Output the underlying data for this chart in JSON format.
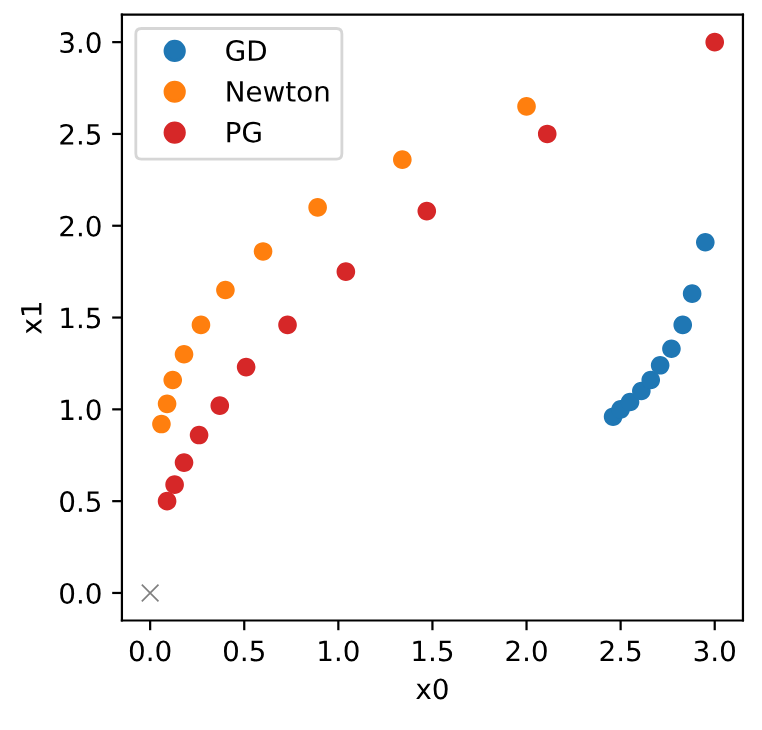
{
  "chart_data": {
    "type": "scatter",
    "xlabel": "x0",
    "ylabel": "x1",
    "xlim": [
      -0.15,
      3.15
    ],
    "ylim": [
      -0.15,
      3.15
    ],
    "xticks": [
      {
        "value": 0,
        "label": "0.0"
      },
      {
        "value": 0.5,
        "label": "0.5"
      },
      {
        "value": 1,
        "label": "1.0"
      },
      {
        "value": 1.5,
        "label": "1.5"
      },
      {
        "value": 2,
        "label": "2.0"
      },
      {
        "value": 2.5,
        "label": "2.5"
      },
      {
        "value": 3,
        "label": "3.0"
      }
    ],
    "yticks": [
      {
        "value": 0,
        "label": "0.0"
      },
      {
        "value": 0.5,
        "label": "0.5"
      },
      {
        "value": 1,
        "label": "1.0"
      },
      {
        "value": 1.5,
        "label": "1.5"
      },
      {
        "value": 2,
        "label": "2.0"
      },
      {
        "value": 2.5,
        "label": "2.5"
      },
      {
        "value": 3,
        "label": "3.0"
      }
    ],
    "grid": false,
    "legend": "top left",
    "marker": "circle",
    "series": [
      {
        "name": "GD",
        "color": "#1f77b4",
        "x": [
          2.46,
          2.5,
          2.55,
          2.61,
          2.66,
          2.71,
          2.77,
          2.83,
          2.88,
          2.95
        ],
        "values": [
          0.96,
          1.0,
          1.04,
          1.1,
          1.16,
          1.24,
          1.33,
          1.46,
          1.63,
          1.91
        ]
      },
      {
        "name": "Newton",
        "color": "#ff7f0e",
        "x": [
          0.06,
          0.09,
          0.12,
          0.18,
          0.27,
          0.4,
          0.6,
          0.89,
          1.34,
          2.0
        ],
        "values": [
          0.92,
          1.03,
          1.16,
          1.3,
          1.46,
          1.65,
          1.86,
          2.1,
          2.36,
          2.65
        ]
      },
      {
        "name": "PG",
        "color": "#d62728",
        "x": [
          0.09,
          0.13,
          0.18,
          0.26,
          0.37,
          0.51,
          0.73,
          1.04,
          1.47,
          2.11,
          3.0
        ],
        "values": [
          0.5,
          0.59,
          0.71,
          0.86,
          1.02,
          1.23,
          1.46,
          1.75,
          2.08,
          2.5,
          3.0
        ]
      },
      {
        "color": "#808080",
        "marker": "cross",
        "x": [
          0
        ],
        "values": [
          0
        ]
      }
    ]
  }
}
